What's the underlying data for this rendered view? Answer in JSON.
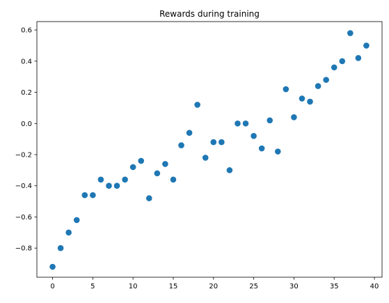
{
  "chart_data": {
    "type": "scatter",
    "title": "Rewards during training",
    "xlabel": "",
    "ylabel": "",
    "xlim": [
      -1.95,
      40.95
    ],
    "ylim": [
      -0.987,
      0.654
    ],
    "xticks": [
      0,
      5,
      10,
      15,
      20,
      25,
      30,
      35,
      40
    ],
    "yticks": [
      -0.8,
      -0.6,
      -0.4,
      -0.2,
      0.0,
      0.2,
      0.4,
      0.6
    ],
    "xtick_labels": [
      "0",
      "5",
      "10",
      "15",
      "20",
      "25",
      "30",
      "35",
      "40"
    ],
    "ytick_labels": [
      "−0.8",
      "−0.6",
      "−0.4",
      "−0.2",
      "0.0",
      "0.2",
      "0.4",
      "0.6"
    ],
    "grid": false,
    "marker_color": "#1f77b4",
    "series": [
      {
        "x": [
          0,
          1,
          2,
          3,
          4,
          5,
          6,
          7,
          8,
          9,
          10,
          11,
          12,
          13,
          14,
          15,
          16,
          17,
          18,
          19,
          20,
          21,
          22,
          23,
          24,
          25,
          26,
          27,
          28,
          29,
          30,
          31,
          32,
          33,
          34,
          35,
          36,
          37,
          38,
          39
        ],
        "y": [
          -0.92,
          -0.8,
          -0.7,
          -0.62,
          -0.46,
          -0.46,
          -0.36,
          -0.4,
          -0.4,
          -0.36,
          -0.28,
          -0.24,
          -0.48,
          -0.32,
          -0.26,
          -0.36,
          -0.14,
          -0.06,
          0.12,
          -0.22,
          -0.12,
          -0.12,
          -0.3,
          0.0,
          0.0,
          -0.08,
          -0.16,
          0.02,
          -0.18,
          0.22,
          0.04,
          0.16,
          0.14,
          0.24,
          0.28,
          0.36,
          0.4,
          0.58,
          0.42,
          0.5
        ]
      }
    ]
  }
}
